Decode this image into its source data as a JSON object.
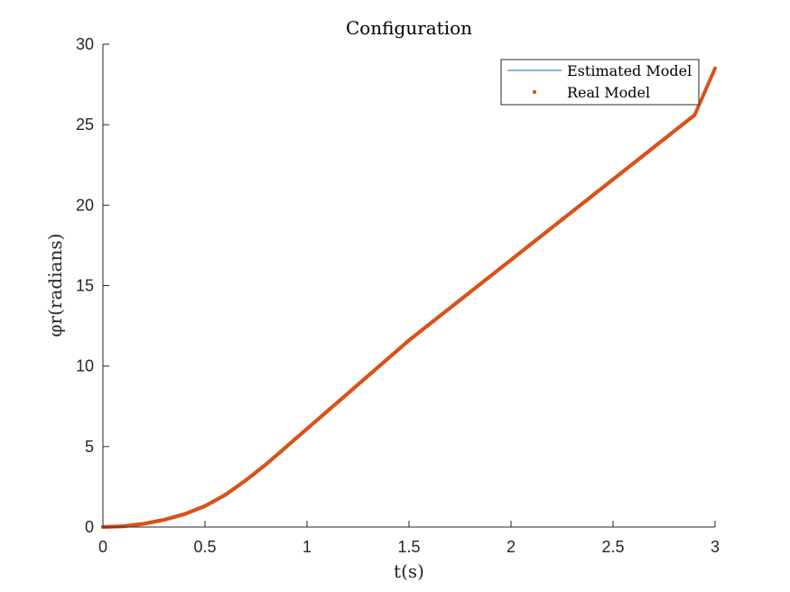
{
  "chart_data": {
    "type": "line",
    "title": "Configuration",
    "xlabel": "t(s)",
    "ylabel": "φr(radians)",
    "xlim": [
      0,
      3
    ],
    "ylim": [
      0,
      30
    ],
    "x_ticks": [
      0,
      0.5,
      1,
      1.5,
      2,
      2.5,
      3
    ],
    "y_ticks": [
      0,
      5,
      10,
      15,
      20,
      25,
      30
    ],
    "x_tick_labels": [
      "0",
      "0.5",
      "1",
      "1.5",
      "2",
      "2.5",
      "3"
    ],
    "y_tick_labels": [
      "0",
      "5",
      "10",
      "15",
      "20",
      "25",
      "30"
    ],
    "grid": false,
    "legend_position": "top-right",
    "series": [
      {
        "name": "Estimated Model",
        "style": "line",
        "color": "#0072BD",
        "x": [
          0,
          0.1,
          0.2,
          0.3,
          0.4,
          0.5,
          0.6,
          0.7,
          0.8,
          0.9,
          1.0,
          1.1,
          1.2,
          1.3,
          1.4,
          1.5,
          1.6,
          1.7,
          1.8,
          1.9,
          2.0,
          2.1,
          2.2,
          2.3,
          2.4,
          2.5,
          2.6,
          2.7,
          2.8,
          2.9,
          3.0
        ],
        "y": [
          0,
          0.05,
          0.2,
          0.45,
          0.8,
          1.3,
          2.0,
          2.9,
          3.9,
          5.0,
          6.1,
          7.2,
          8.3,
          9.4,
          10.5,
          11.6,
          12.6,
          13.6,
          14.6,
          15.6,
          16.6,
          17.6,
          18.6,
          19.6,
          20.6,
          21.6,
          22.6,
          23.6,
          24.6,
          25.6,
          28.5
        ]
      },
      {
        "name": "Real Model",
        "style": "points",
        "color": "#D95319",
        "x": [
          0,
          0.1,
          0.2,
          0.3,
          0.4,
          0.5,
          0.6,
          0.7,
          0.8,
          0.9,
          1.0,
          1.1,
          1.2,
          1.3,
          1.4,
          1.5,
          1.6,
          1.7,
          1.8,
          1.9,
          2.0,
          2.1,
          2.2,
          2.3,
          2.4,
          2.5,
          2.6,
          2.7,
          2.8,
          2.9,
          3.0
        ],
        "y": [
          0,
          0.05,
          0.2,
          0.45,
          0.8,
          1.3,
          2.0,
          2.9,
          3.9,
          5.0,
          6.1,
          7.2,
          8.3,
          9.4,
          10.5,
          11.6,
          12.6,
          13.6,
          14.6,
          15.6,
          16.6,
          17.6,
          18.6,
          19.6,
          20.6,
          21.6,
          22.6,
          23.6,
          24.6,
          25.6,
          28.5
        ]
      }
    ]
  }
}
